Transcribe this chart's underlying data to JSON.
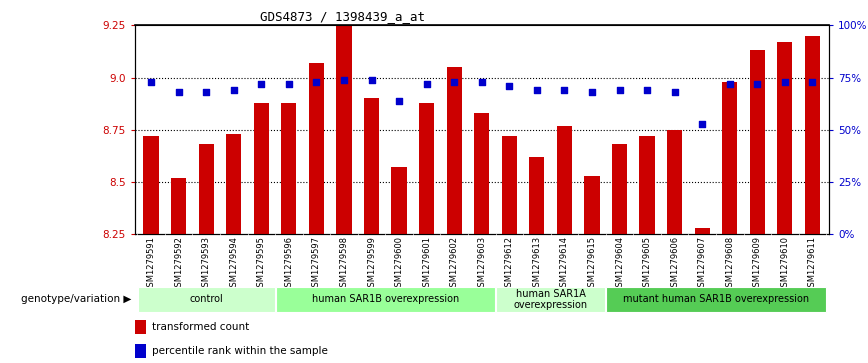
{
  "title": "GDS4873 / 1398439_a_at",
  "samples": [
    "GSM1279591",
    "GSM1279592",
    "GSM1279593",
    "GSM1279594",
    "GSM1279595",
    "GSM1279596",
    "GSM1279597",
    "GSM1279598",
    "GSM1279599",
    "GSM1279600",
    "GSM1279601",
    "GSM1279602",
    "GSM1279603",
    "GSM1279612",
    "GSM1279613",
    "GSM1279614",
    "GSM1279615",
    "GSM1279604",
    "GSM1279605",
    "GSM1279606",
    "GSM1279607",
    "GSM1279608",
    "GSM1279609",
    "GSM1279610",
    "GSM1279611"
  ],
  "bar_values": [
    8.72,
    8.52,
    8.68,
    8.73,
    8.88,
    8.88,
    9.07,
    9.25,
    8.9,
    8.57,
    8.88,
    9.05,
    8.83,
    8.72,
    8.62,
    8.77,
    8.53,
    8.68,
    8.72,
    8.75,
    8.28,
    8.98,
    9.13,
    9.17,
    9.2
  ],
  "percentile_values": [
    73,
    68,
    68,
    69,
    72,
    72,
    73,
    74,
    74,
    64,
    72,
    73,
    73,
    71,
    69,
    69,
    68,
    69,
    69,
    68,
    53,
    72,
    72,
    73,
    73
  ],
  "ylim_left": [
    8.25,
    9.25
  ],
  "ylim_right": [
    0,
    100
  ],
  "yticks_left": [
    8.25,
    8.5,
    8.75,
    9.0,
    9.25
  ],
  "yticks_right": [
    0,
    25,
    50,
    75,
    100
  ],
  "bar_color": "#cc0000",
  "dot_color": "#0000cc",
  "bar_width": 0.55,
  "groups": [
    {
      "label": "control",
      "start": 0,
      "end": 5,
      "color": "#ccffcc"
    },
    {
      "label": "human SAR1B overexpression",
      "start": 5,
      "end": 13,
      "color": "#99ff99"
    },
    {
      "label": "human SAR1A\noverexpression",
      "start": 13,
      "end": 17,
      "color": "#ccffcc"
    },
    {
      "label": "mutant human SAR1B overexpression",
      "start": 17,
      "end": 25,
      "color": "#55cc55"
    }
  ],
  "group_label": "genotype/variation",
  "legend_bar_label": "transformed count",
  "legend_dot_label": "percentile rank within the sample",
  "background_color": "#ffffff",
  "plot_bg_color": "#ffffff",
  "tick_label_color_left": "#cc0000",
  "tick_label_color_right": "#0000cc",
  "xlabel_area_color": "#c8c8c8",
  "group_area_color": "#88dd88"
}
